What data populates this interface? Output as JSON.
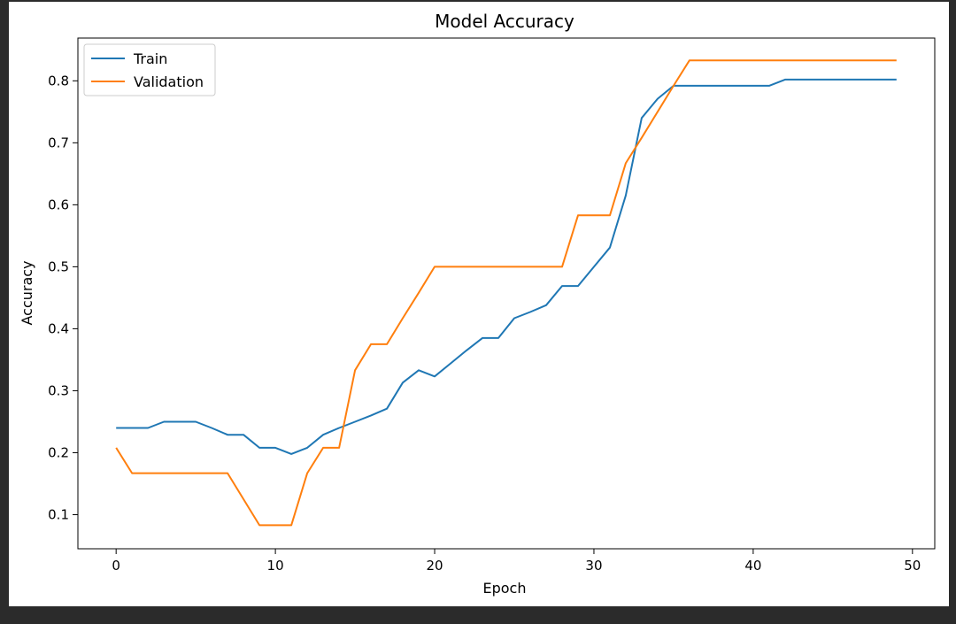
{
  "chart_data": {
    "type": "line",
    "title": "Model Accuracy",
    "xlabel": "Epoch",
    "ylabel": "Accuracy",
    "xlim": [
      -2.4,
      51.4
    ],
    "ylim": [
      0.045,
      0.869
    ],
    "xticks": [
      0,
      10,
      20,
      30,
      40,
      50
    ],
    "yticks": [
      0.1,
      0.2,
      0.3,
      0.4,
      0.5,
      0.6,
      0.7,
      0.8
    ],
    "grid": false,
    "legend_position": "top-left",
    "x": [
      0,
      1,
      2,
      3,
      4,
      5,
      6,
      7,
      8,
      9,
      10,
      11,
      12,
      13,
      14,
      15,
      16,
      17,
      18,
      19,
      20,
      21,
      22,
      23,
      24,
      25,
      26,
      27,
      28,
      29,
      30,
      31,
      32,
      33,
      34,
      35,
      36,
      37,
      38,
      39,
      40,
      41,
      42,
      43,
      44,
      45,
      46,
      47,
      48,
      49
    ],
    "series": [
      {
        "name": "Train",
        "color": "#1f77b4",
        "values": [
          0.24,
          0.24,
          0.24,
          0.25,
          0.25,
          0.25,
          0.24,
          0.229,
          0.229,
          0.208,
          0.208,
          0.198,
          0.208,
          0.229,
          0.24,
          0.25,
          0.26,
          0.271,
          0.313,
          0.333,
          0.323,
          0.344,
          0.365,
          0.385,
          0.385,
          0.417,
          0.427,
          0.438,
          0.469,
          0.469,
          0.5,
          0.531,
          0.615,
          0.74,
          0.771,
          0.792,
          0.792,
          0.792,
          0.792,
          0.792,
          0.792,
          0.792,
          0.802,
          0.802,
          0.802,
          0.802,
          0.802,
          0.802,
          0.802,
          0.802
        ]
      },
      {
        "name": "Validation",
        "color": "#ff7f0e",
        "values": [
          0.208,
          0.167,
          0.167,
          0.167,
          0.167,
          0.167,
          0.167,
          0.167,
          0.125,
          0.083,
          0.083,
          0.083,
          0.167,
          0.208,
          0.208,
          0.333,
          0.375,
          0.375,
          0.417,
          0.458,
          0.5,
          0.5,
          0.5,
          0.5,
          0.5,
          0.5,
          0.5,
          0.5,
          0.5,
          0.583,
          0.583,
          0.583,
          0.667,
          0.708,
          0.75,
          0.792,
          0.833,
          0.833,
          0.833,
          0.833,
          0.833,
          0.833,
          0.833,
          0.833,
          0.833,
          0.833,
          0.833,
          0.833,
          0.833,
          0.833
        ]
      }
    ]
  }
}
